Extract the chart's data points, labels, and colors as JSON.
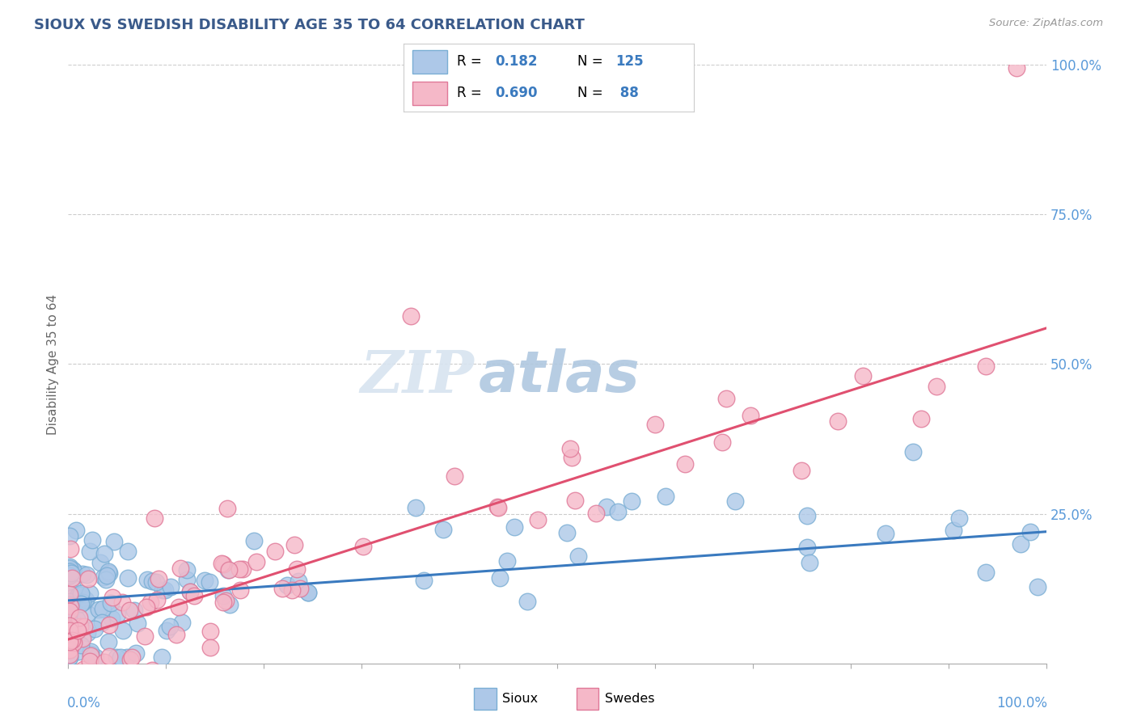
{
  "title": "SIOUX VS SWEDISH DISABILITY AGE 35 TO 64 CORRELATION CHART",
  "source": "Source: ZipAtlas.com",
  "ylabel": "Disability Age 35 to 64",
  "sioux_R": 0.182,
  "sioux_N": 125,
  "swedes_R": 0.69,
  "swedes_N": 88,
  "watermark_zip": "ZIP",
  "watermark_atlas": "atlas",
  "sioux_color": "#adc8e8",
  "sioux_edge": "#7aaed4",
  "swedes_color": "#f5b8c8",
  "swedes_edge": "#e07898",
  "trend_sioux_color": "#3a7abf",
  "trend_swedes_color": "#e05070",
  "background": "#ffffff",
  "grid_color": "#cccccc",
  "title_color": "#3a5a8a",
  "ytick_color": "#5a9ad9",
  "legend_text_color": "#3a7abf",
  "sioux_intercept": 0.105,
  "sioux_slope": 0.115,
  "swedes_intercept": 0.04,
  "swedes_slope": 0.52
}
